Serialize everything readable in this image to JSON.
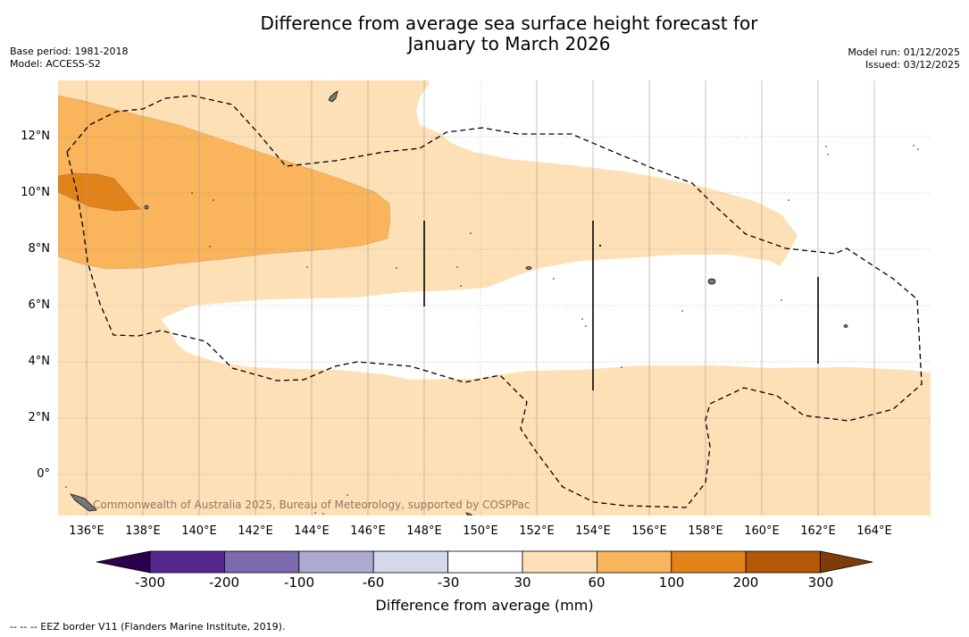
{
  "title_line1": "Difference from average sea surface height forecast for",
  "title_line2": "January to March 2026",
  "base_period": "Base period: 1981-2018",
  "model": "Model: ACCESS-S2",
  "model_run": "Model run: 01/12/2025",
  "issued": "Issued: 03/12/2025",
  "lat_labels": [
    "12°N",
    "10°N",
    "8°N",
    "6°N",
    "4°N",
    "2°N",
    "0°"
  ],
  "lon_labels": [
    "136°E",
    "138°E",
    "140°E",
    "142°E",
    "144°E",
    "146°E",
    "148°E",
    "150°E",
    "152°E",
    "154°E",
    "156°E",
    "158°E",
    "160°E",
    "162°E",
    "164°E"
  ],
  "watermark": "Commonwealth of Australia 2025, Bureau of Meteorology, supported by COSPPac",
  "colorbar": {
    "label": "Difference from average (mm)",
    "ticks": [
      "-300",
      "-200",
      "-100",
      "-60",
      "-30",
      "30",
      "60",
      "100",
      "200",
      "300"
    ],
    "colors": [
      "#54278f",
      "#7b6aad",
      "#adaad2",
      "#d6d8ec",
      "#ffffff",
      "#fde0b6",
      "#f9b45c",
      "#e2831a",
      "#b35807"
    ],
    "under_color": "#2d004b",
    "over_color": "#7f3b08"
  },
  "footnote": "--  --  -- EEZ border V11 (Flanders Marine Institute, 2019)."
}
